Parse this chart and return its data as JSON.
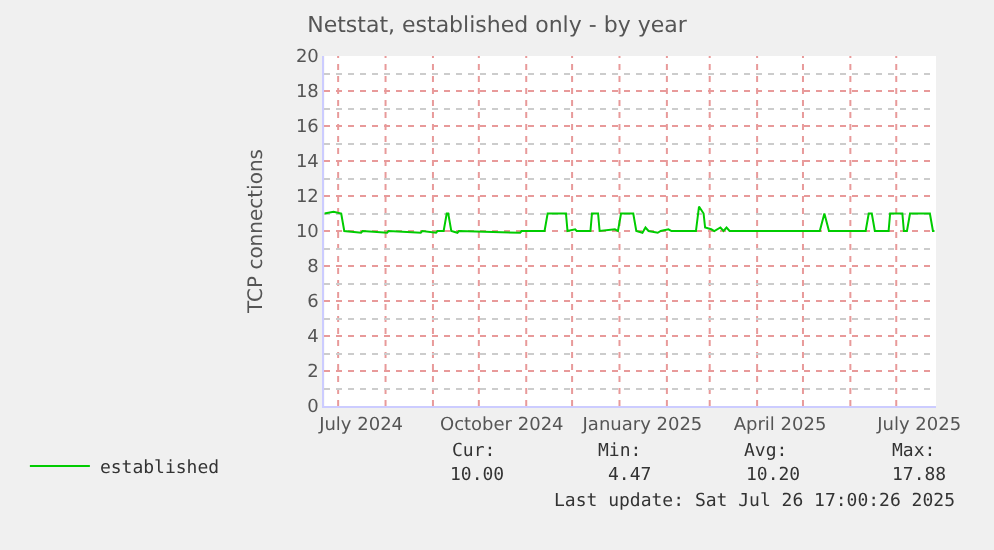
{
  "chart_data": {
    "type": "line",
    "title": "Netstat, established only - by year",
    "ylabel": "TCP connections",
    "x": [
      "2024-06-22",
      "2024-06-28",
      "2024-07-03",
      "2024-07-05",
      "2024-07-16",
      "2024-07-17",
      "2024-08-02",
      "2024-08-03",
      "2024-08-24",
      "2024-08-25",
      "2024-09-03",
      "2024-09-04",
      "2024-09-08",
      "2024-09-10",
      "2024-09-11",
      "2024-09-13",
      "2024-09-17",
      "2024-09-18",
      "2024-10-28",
      "2024-10-29",
      "2024-11-13",
      "2024-11-15",
      "2024-11-27",
      "2024-11-28",
      "2024-12-03",
      "2024-12-04",
      "2024-12-13",
      "2024-12-14",
      "2024-12-18",
      "2024-12-19",
      "2024-12-29",
      "2024-12-31",
      "2025-01-02",
      "2025-01-10",
      "2025-01-12",
      "2025-01-16",
      "2025-01-18",
      "2025-01-20",
      "2025-01-26",
      "2025-01-28",
      "2025-02-02",
      "2025-02-04",
      "2025-02-20",
      "2025-02-22",
      "2025-02-25",
      "2025-02-26",
      "2025-03-02",
      "2025-03-04",
      "2025-03-08",
      "2025-03-10",
      "2025-03-12",
      "2025-03-14",
      "2025-05-12",
      "2025-05-15",
      "2025-05-18",
      "2025-06-11",
      "2025-06-13",
      "2025-06-15",
      "2025-06-17",
      "2025-06-26",
      "2025-06-27",
      "2025-07-05",
      "2025-07-06",
      "2025-07-08",
      "2025-07-10",
      "2025-07-23",
      "2025-07-25",
      "2025-07-26"
    ],
    "series": [
      {
        "name": "established",
        "color": "#00cc00",
        "values": [
          11,
          11.1,
          11,
          10,
          9.9,
          10,
          9.9,
          10,
          9.9,
          10,
          9.9,
          10,
          10,
          11,
          11,
          10,
          9.9,
          10,
          9.9,
          10,
          10,
          11,
          11,
          10,
          10.1,
          10,
          10,
          11,
          11,
          10,
          10.1,
          10,
          11,
          11,
          10,
          9.9,
          10.2,
          10,
          9.9,
          10,
          10.1,
          10,
          10,
          11.4,
          11,
          10.2,
          10.1,
          10,
          10.2,
          10,
          10.2,
          10,
          10,
          11,
          10,
          10,
          11,
          11,
          10,
          10,
          11,
          11,
          10,
          10,
          11,
          11,
          10,
          10
        ]
      }
    ],
    "xlim": [
      "2024-06-22",
      "2025-07-27"
    ],
    "xticks": [
      {
        "value": "2024-07-01",
        "label": null
      },
      {
        "value": "2024-07-16",
        "label": "July 2024"
      },
      {
        "value": "2024-08-01",
        "label": null
      },
      {
        "value": "2024-09-01",
        "label": null
      },
      {
        "value": "2024-10-01",
        "label": null
      },
      {
        "value": "2024-10-16",
        "label": "October 2024"
      },
      {
        "value": "2024-11-01",
        "label": null
      },
      {
        "value": "2024-12-01",
        "label": null
      },
      {
        "value": "2025-01-01",
        "label": null
      },
      {
        "value": "2025-01-16",
        "label": "January 2025"
      },
      {
        "value": "2025-02-01",
        "label": null
      },
      {
        "value": "2025-03-01",
        "label": null
      },
      {
        "value": "2025-04-01",
        "label": null
      },
      {
        "value": "2025-04-16",
        "label": "April 2025"
      },
      {
        "value": "2025-05-01",
        "label": null
      },
      {
        "value": "2025-06-01",
        "label": null
      },
      {
        "value": "2025-07-01",
        "label": null
      },
      {
        "value": "2025-07-16",
        "label": "July 2025"
      }
    ],
    "ylim": [
      0,
      20
    ],
    "yticks": [
      0,
      2,
      4,
      6,
      8,
      10,
      12,
      14,
      16,
      18,
      20
    ],
    "grid": true,
    "legend": "bottom left",
    "marker": "none",
    "line_style": "solid",
    "annotations": [
      "Cur:",
      "Min:",
      "Avg:",
      "Max:",
      "10.00",
      "4.47",
      "10.20",
      "17.88",
      "Last update: Sat Jul 26 17:00:26 2025"
    ]
  }
}
